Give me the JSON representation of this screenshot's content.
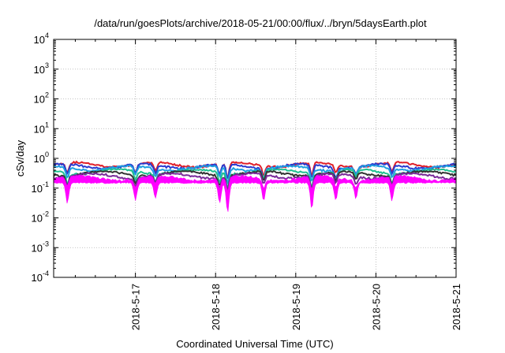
{
  "chart_data": {
    "type": "line",
    "title": "/data/run/goesPlots/archive/2018-05-21/00:00/flux/../bryn/5daysEarth.plot",
    "xlabel": "Coordinated Universal Time (UTC)",
    "ylabel": "cSv/day",
    "yscale": "log",
    "ylim": [
      0.0001,
      10000
    ],
    "xlim": [
      "2018-05-16 00:00",
      "2018-05-21 00:00"
    ],
    "grid": true,
    "y_ticks": [
      {
        "base": "10",
        "exp": "4"
      },
      {
        "base": "10",
        "exp": "3"
      },
      {
        "base": "10",
        "exp": "2"
      },
      {
        "base": "10",
        "exp": "1"
      },
      {
        "base": "10",
        "exp": "0"
      },
      {
        "base": "10",
        "exp": "-1"
      },
      {
        "base": "10",
        "exp": "-2"
      },
      {
        "base": "10",
        "exp": "-3"
      },
      {
        "base": "10",
        "exp": "-4"
      }
    ],
    "x_ticks": [
      "2018-5-17",
      "2018-5-18",
      "2018-5-19",
      "2018-5-20",
      "2018-5-21"
    ],
    "x_days": [
      1,
      2,
      3,
      4,
      5
    ],
    "series": [
      {
        "color": "#e0202a",
        "base": 0.62,
        "kind": "line"
      },
      {
        "color": "#2a3bd0",
        "base": 0.55,
        "kind": "line"
      },
      {
        "color": "#1f9fe0",
        "base": 0.47,
        "kind": "line"
      },
      {
        "color": "#20c090",
        "base": 0.36,
        "kind": "line"
      },
      {
        "color": "#333333",
        "base": 0.31,
        "kind": "line"
      },
      {
        "color": "#7a2a9a",
        "base": 0.26,
        "kind": "line"
      },
      {
        "color": "#ff00ff",
        "base": 0.22,
        "kind": "band"
      }
    ]
  }
}
